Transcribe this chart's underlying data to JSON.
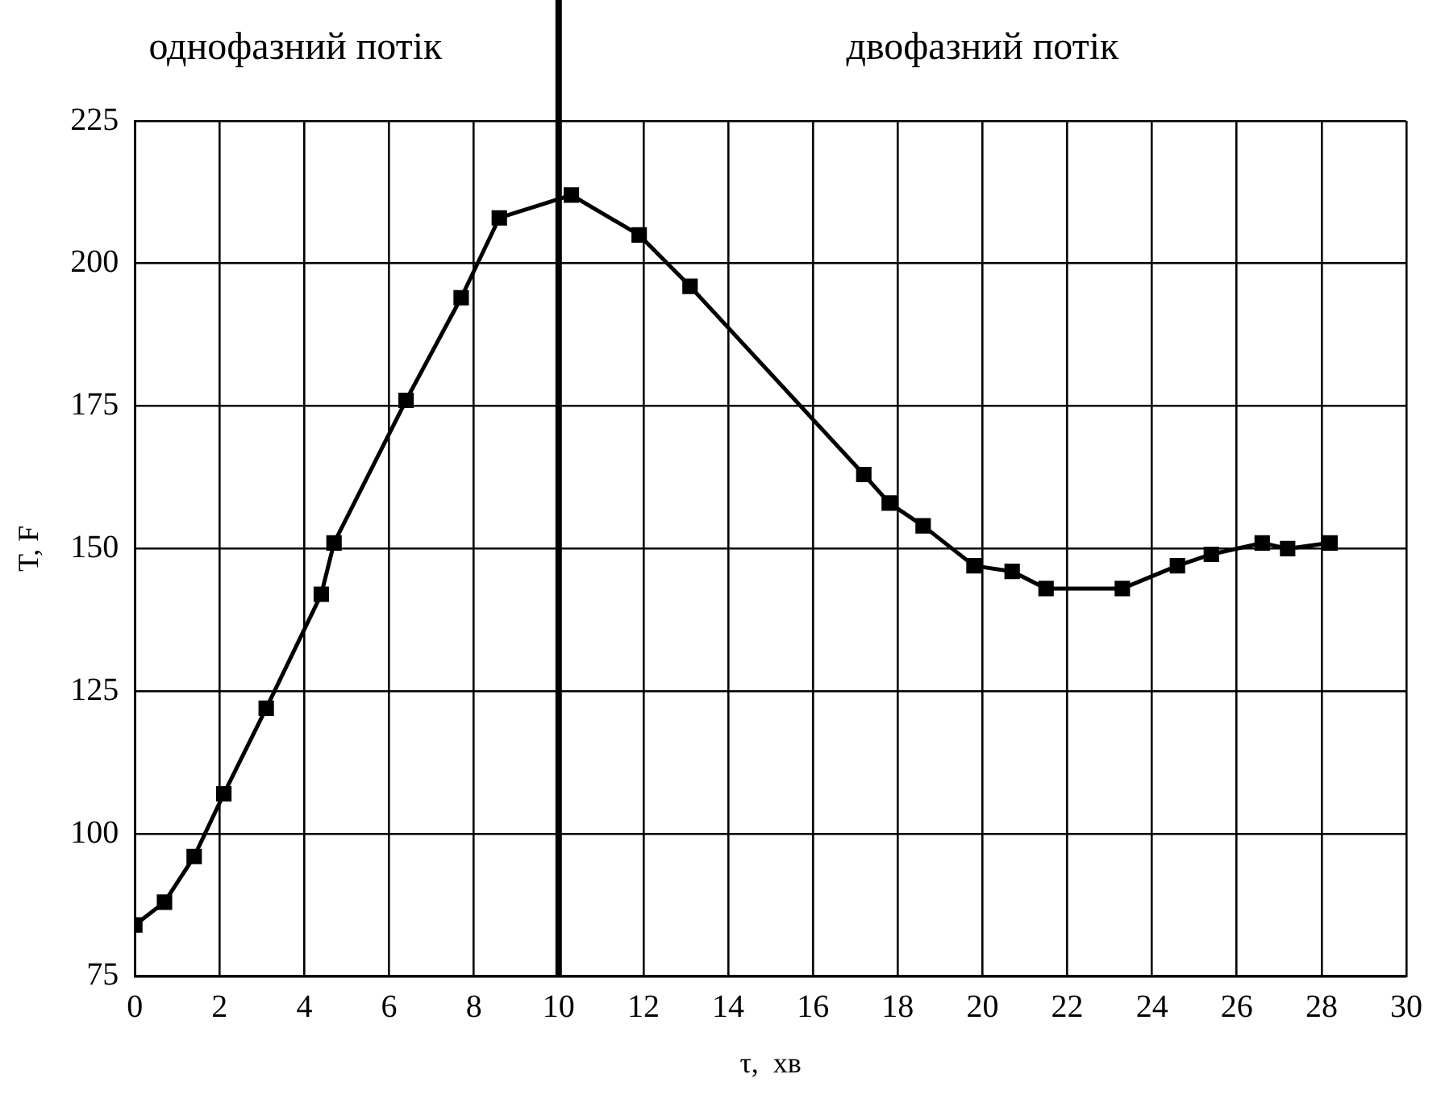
{
  "chart_data": {
    "type": "line",
    "xlabel": "τ,  хв",
    "ylabel": "T, F",
    "annotations": [
      "однофазний потік",
      "двофазний потік"
    ],
    "series": [
      {
        "color": "#000000",
        "x": [
          0,
          0.7,
          1.4,
          2.1,
          3.1,
          4.4,
          4.7,
          6.4,
          7.7,
          8.6,
          10.3,
          11.9,
          13.1,
          17.2,
          17.8,
          18.6,
          19.8,
          20.7,
          21.5,
          23.3,
          24.6,
          25.4,
          26.6,
          27.2,
          28.2
        ],
        "values": [
          84,
          88,
          96,
          107,
          122,
          142,
          151,
          176,
          194,
          208,
          212,
          205,
          196,
          163,
          158,
          154,
          147,
          146,
          143,
          143,
          147,
          149,
          151,
          150,
          151
        ]
      }
    ],
    "xlim": [
      0,
      30
    ],
    "xticks": [
      0,
      2,
      4,
      6,
      8,
      10,
      12,
      14,
      16,
      18,
      20,
      22,
      24,
      26,
      28,
      30
    ],
    "ylim": [
      75,
      225
    ],
    "yticks": [
      75,
      100,
      125,
      150,
      175,
      200,
      225
    ],
    "ref_lines": [
      {
        "axis": "x",
        "value": 10,
        "color": "#000000"
      }
    ],
    "grid": true,
    "legend": false,
    "marker": "square",
    "line_style": "solid"
  }
}
